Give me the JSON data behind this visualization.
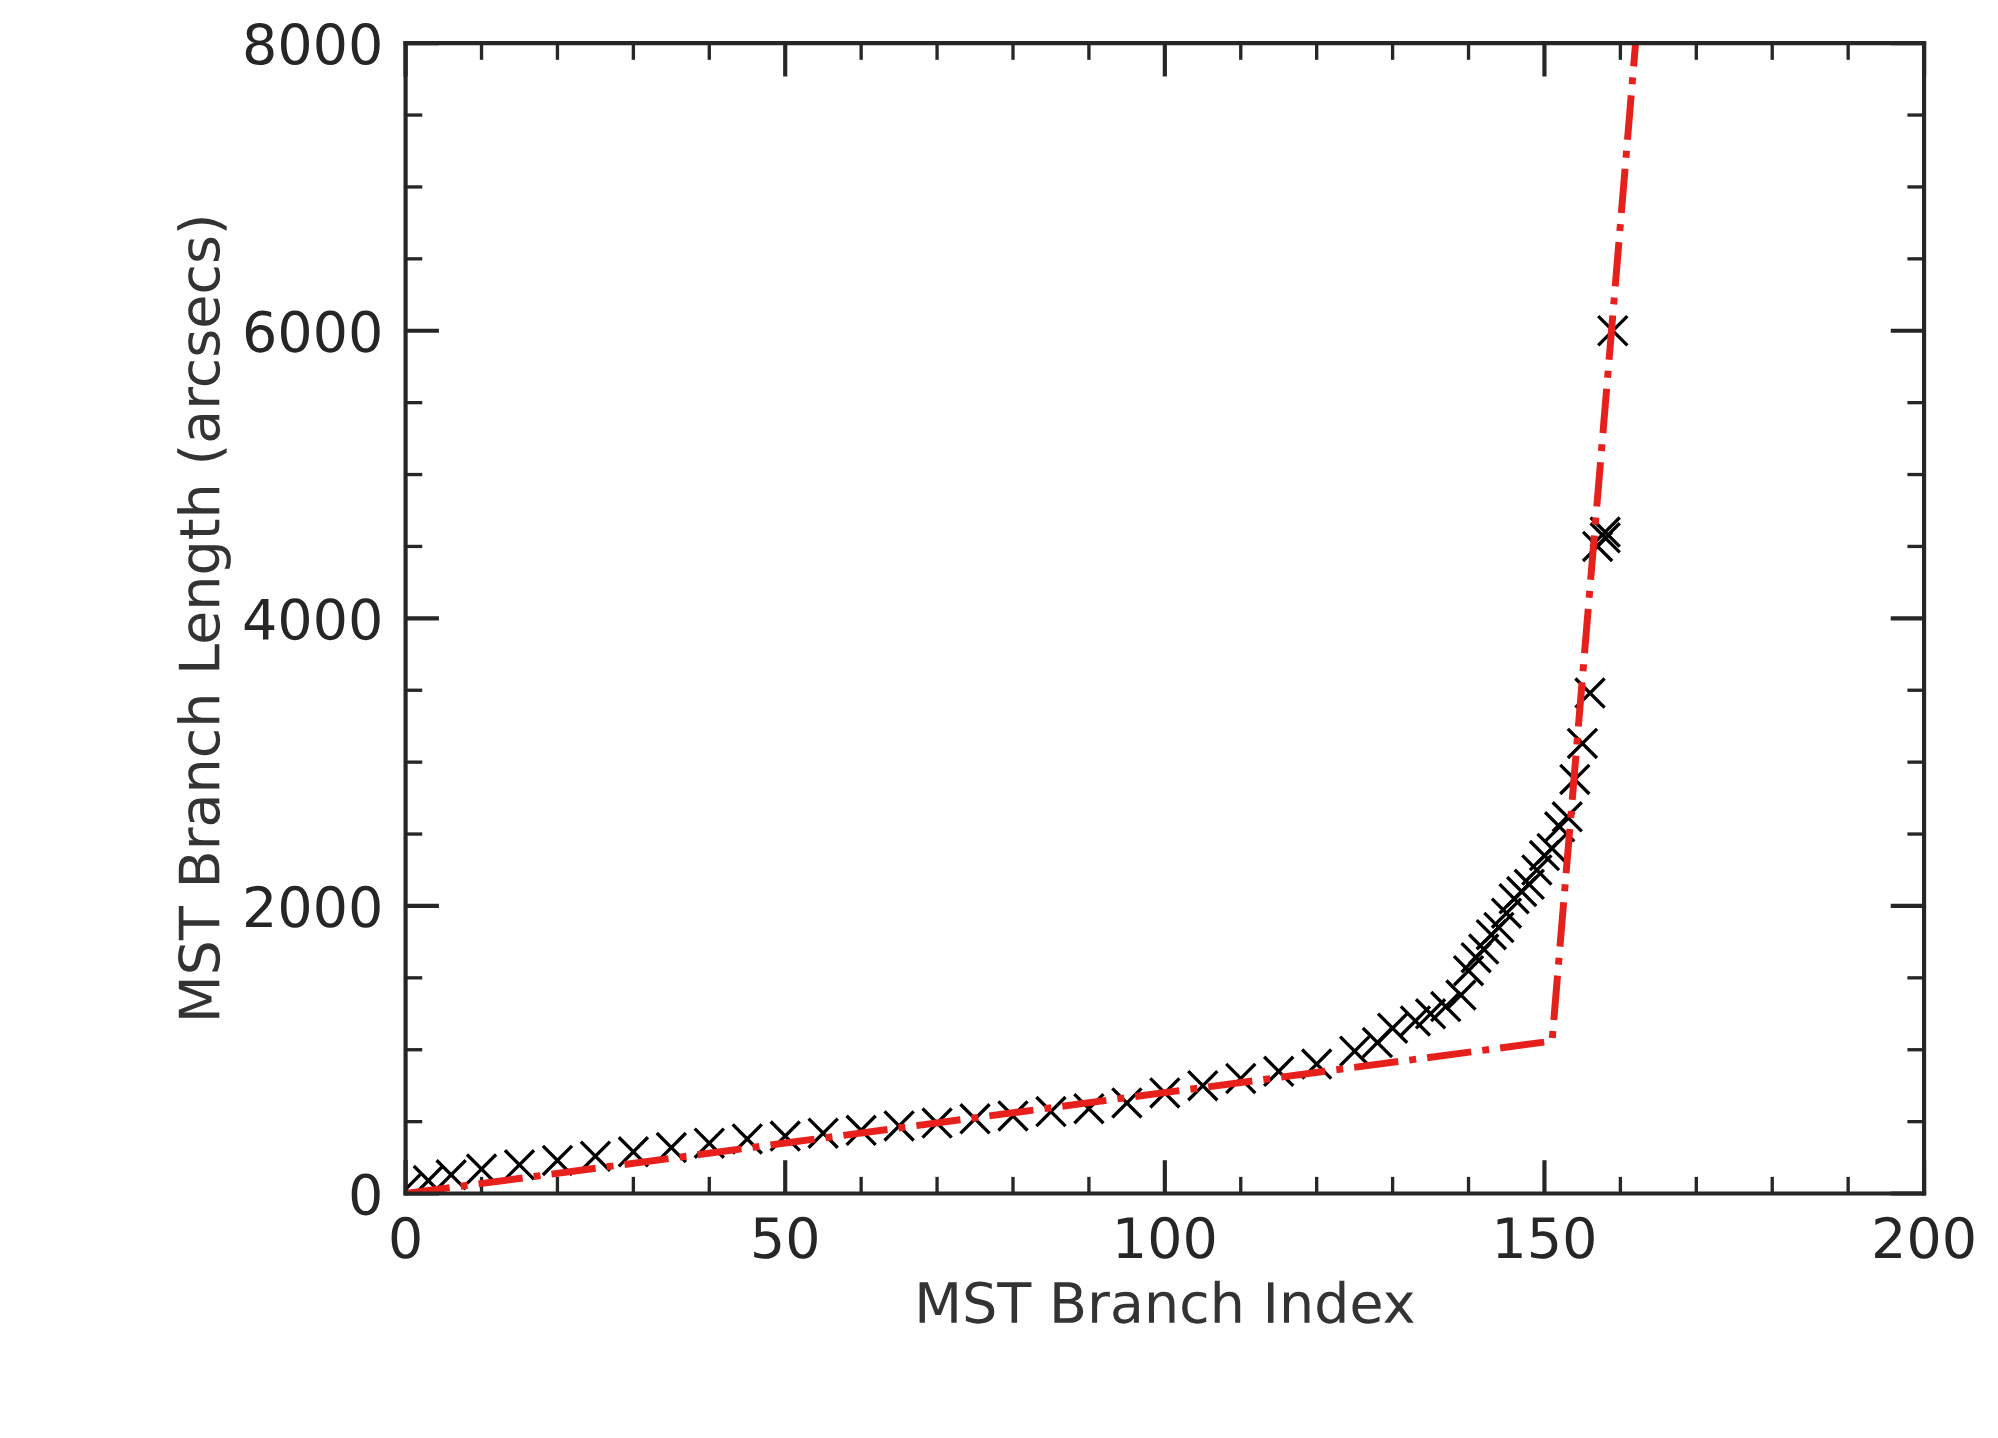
{
  "chart_data": {
    "type": "scatter",
    "xlabel": "MST Branch Index",
    "ylabel": "MST Branch Length (arcsecs)",
    "xlim": [
      0,
      200
    ],
    "xticks": [
      0,
      50,
      100,
      150,
      200
    ],
    "ylim": [
      0,
      8000
    ],
    "yticks": [
      0,
      2000,
      4000,
      6000,
      8000
    ],
    "grid": false,
    "legend": false,
    "series": [
      {
        "color": "#000000",
        "marker": "cross",
        "x": [
          0,
          3,
          6,
          10,
          15,
          20,
          25,
          30,
          35,
          40,
          45,
          50,
          55,
          60,
          65,
          70,
          75,
          80,
          85,
          90,
          95,
          100,
          105,
          110,
          115,
          120,
          125,
          128,
          130,
          133,
          135,
          137,
          139,
          140,
          141,
          142,
          143,
          144,
          145,
          146,
          147,
          148,
          149,
          150,
          151,
          152,
          153,
          154,
          155,
          156,
          157,
          158,
          158,
          159
        ],
        "values": [
          30,
          90,
          130,
          170,
          200,
          230,
          260,
          290,
          320,
          350,
          380,
          400,
          420,
          440,
          470,
          490,
          520,
          540,
          570,
          590,
          630,
          700,
          750,
          800,
          850,
          900,
          990,
          1050,
          1150,
          1200,
          1250,
          1300,
          1380,
          1550,
          1640,
          1700,
          1800,
          1850,
          1950,
          2050,
          2100,
          2150,
          2250,
          2350,
          2400,
          2550,
          2620,
          2880,
          3130,
          3480,
          4500,
          4600,
          4560,
          6000
        ]
      },
      {
        "type": "line",
        "color": "#e8201c",
        "line_style": "dashdot",
        "marker": "none",
        "x": [
          0,
          151,
          162
        ],
        "values": [
          0,
          1060,
          8000
        ]
      }
    ]
  }
}
